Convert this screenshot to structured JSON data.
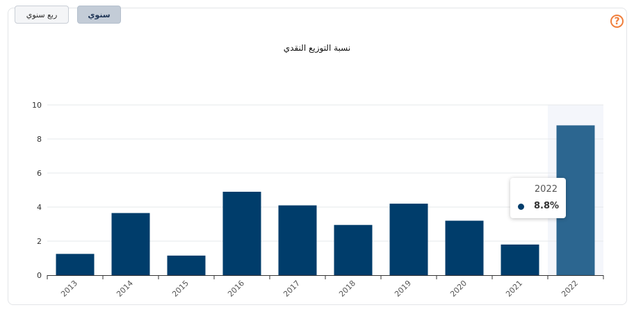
{
  "toggles": {
    "quarterly": "ربع سنوي",
    "annual": "سنوي"
  },
  "help_icon": "?",
  "chart_data": {
    "type": "bar",
    "title": "نسبة التوزيع النقدي",
    "categories": [
      "2013",
      "2014",
      "2015",
      "2016",
      "2017",
      "2018",
      "2019",
      "2020",
      "2021",
      "2022"
    ],
    "values": [
      1.25,
      3.65,
      1.15,
      4.9,
      4.1,
      2.95,
      4.2,
      3.2,
      1.8,
      8.8
    ],
    "ylim": [
      0,
      10
    ],
    "yticks": [
      0,
      2,
      4,
      6,
      8,
      10
    ],
    "grid": true,
    "bar_color": "#003d6b",
    "highlight_color": "#2c6690",
    "highlight_band_color": "#f4f6fb",
    "highlighted_category": "2022"
  },
  "tooltip": {
    "year": "2022",
    "value": "8.8%"
  }
}
